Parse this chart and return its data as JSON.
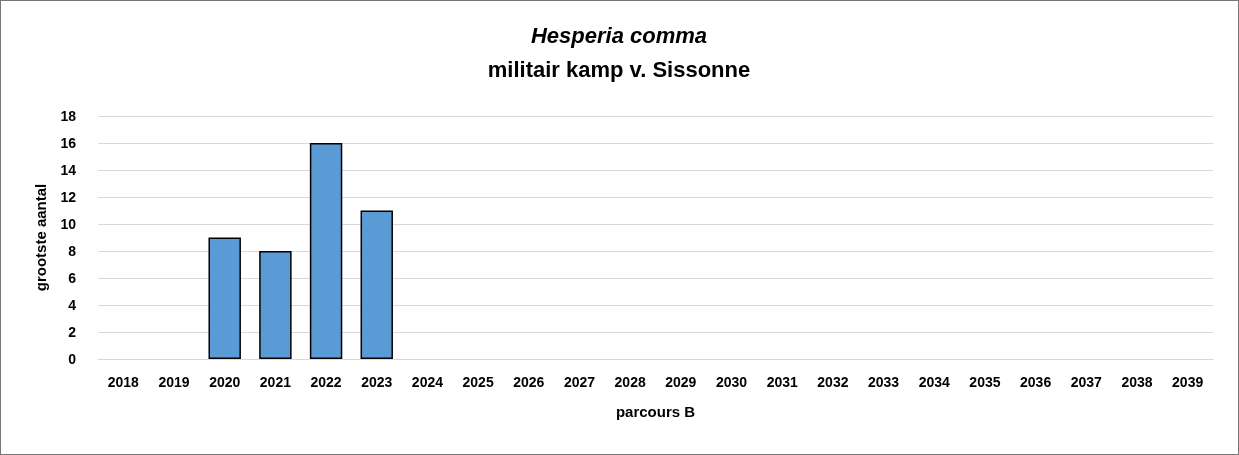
{
  "chart_data": {
    "type": "bar",
    "title": "Hesperia comma",
    "subtitle": "militair kamp v. Sissonne",
    "xlabel": "parcours B",
    "ylabel": "grootste aantal",
    "categories": [
      "2018",
      "2019",
      "2020",
      "2021",
      "2022",
      "2023",
      "2024",
      "2025",
      "2026",
      "2027",
      "2028",
      "2029",
      "2030",
      "2031",
      "2032",
      "2033",
      "2034",
      "2035",
      "2036",
      "2037",
      "2038",
      "2039"
    ],
    "values": [
      null,
      null,
      9,
      8,
      16,
      11,
      null,
      null,
      null,
      null,
      null,
      null,
      null,
      null,
      null,
      null,
      null,
      null,
      null,
      null,
      null,
      null
    ],
    "color": "#5b9bd5",
    "ylim": [
      0,
      18
    ],
    "yticks": [
      0,
      2,
      4,
      6,
      8,
      10,
      12,
      14,
      16,
      18
    ],
    "grid": "y"
  }
}
